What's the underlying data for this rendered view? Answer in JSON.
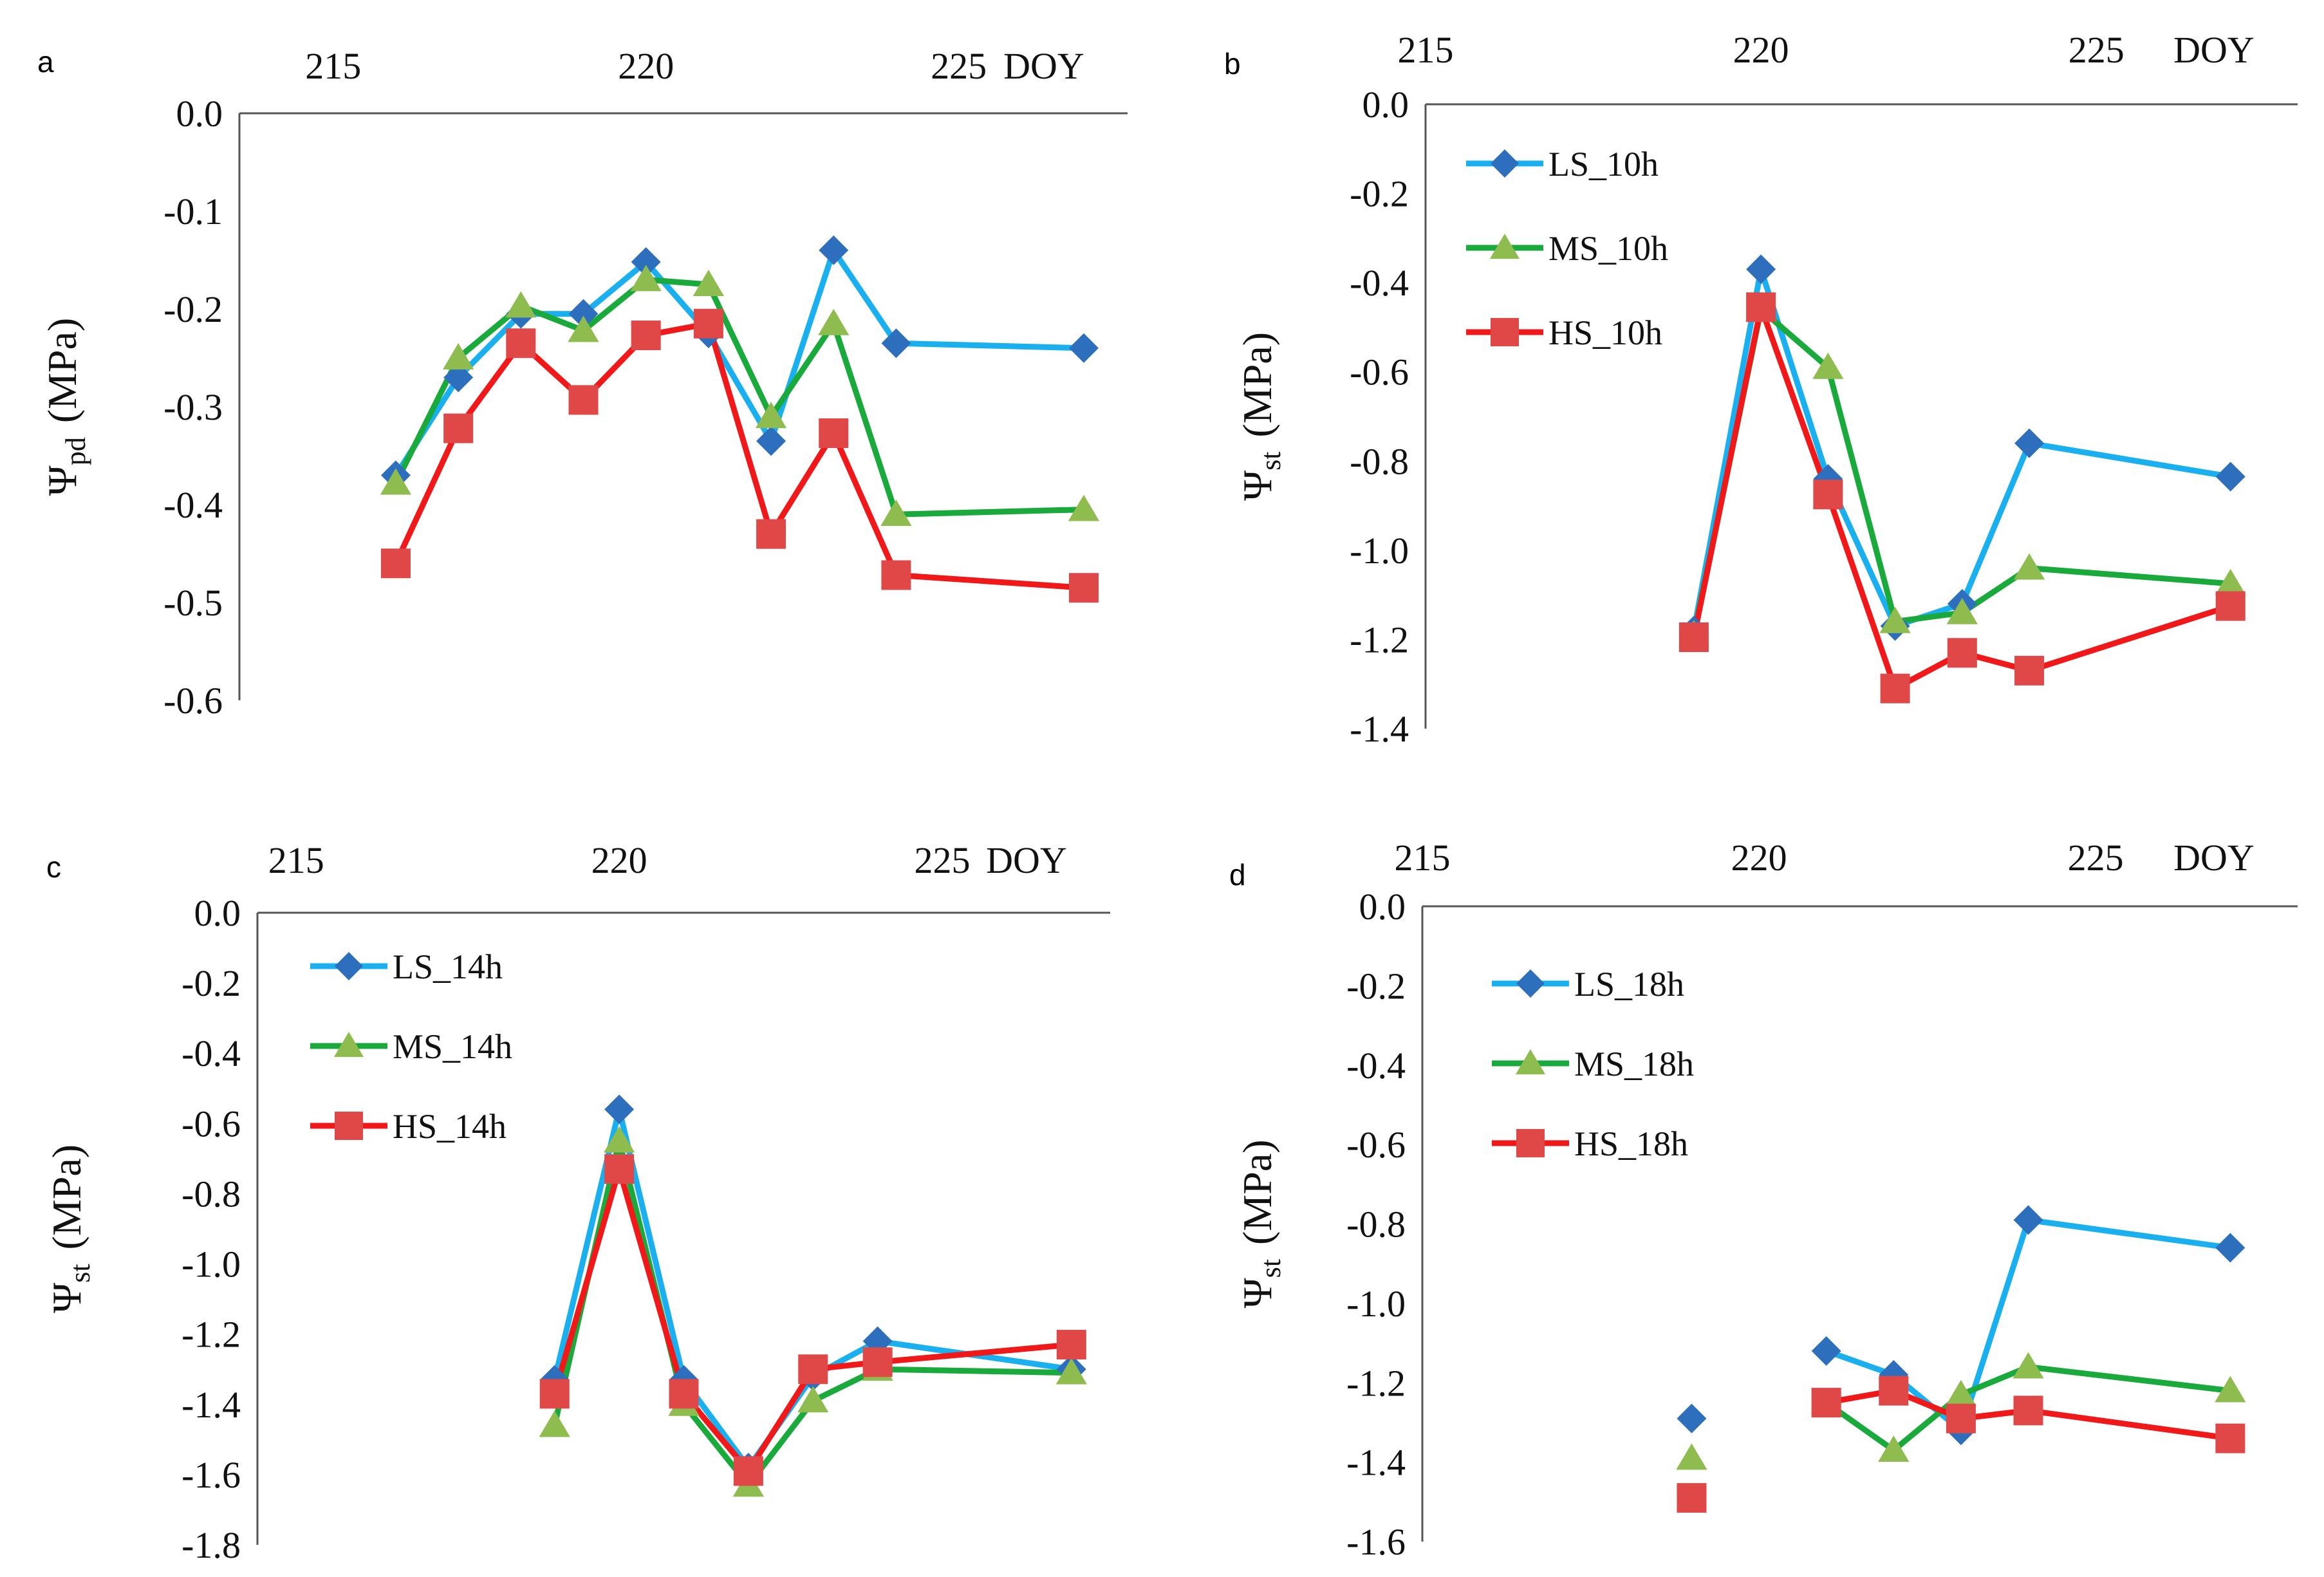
{
  "figure": {
    "colors": {
      "LS": "#1ab0f0",
      "MS": "#1aaa3c",
      "HS": "#f01818",
      "LS_marker": "#2e6fbd",
      "MS_marker": "#8fbc4f",
      "HS_marker": "#e04848"
    }
  },
  "chart_data": [
    {
      "panel": "a",
      "type": "line",
      "x_axis_label": "DOY",
      "x_ticks": [
        "215",
        "220",
        "225"
      ],
      "y_label_main": "Ψ",
      "y_label_sub": "pd",
      "y_label_unit": "(MPa)",
      "y_ticks": [
        "0.0",
        "-0.1",
        "-0.2",
        "-0.3",
        "-0.4",
        "-0.5",
        "-0.6"
      ],
      "xlim": [
        213.5,
        227.7
      ],
      "ylim": [
        -0.6,
        0.0
      ],
      "legend": [],
      "series": [
        {
          "name": "LS",
          "points": [
            [
              216,
              -0.37
            ],
            [
              217,
              -0.27
            ],
            [
              218,
              -0.205
            ],
            [
              219,
              -0.205
            ],
            [
              220,
              -0.152
            ],
            [
              221,
              -0.225
            ],
            [
              222,
              -0.335
            ],
            [
              223,
              -0.14
            ],
            [
              224,
              -0.235
            ],
            [
              227,
              -0.24
            ]
          ]
        },
        {
          "name": "MS",
          "points": [
            [
              216,
              -0.378
            ],
            [
              217,
              -0.25
            ],
            [
              218,
              -0.197
            ],
            [
              219,
              -0.222
            ],
            [
              220,
              -0.17
            ],
            [
              221,
              -0.175
            ],
            [
              222,
              -0.31
            ],
            [
              223,
              -0.215
            ],
            [
              224,
              -0.41
            ],
            [
              227,
              -0.405
            ]
          ]
        },
        {
          "name": "HS",
          "points": [
            [
              216,
              -0.46
            ],
            [
              217,
              -0.322
            ],
            [
              218,
              -0.235
            ],
            [
              219,
              -0.293
            ],
            [
              220,
              -0.227
            ],
            [
              221,
              -0.215
            ],
            [
              222,
              -0.43
            ],
            [
              223,
              -0.327
            ],
            [
              224,
              -0.472
            ],
            [
              227,
              -0.485
            ]
          ]
        }
      ]
    },
    {
      "panel": "b",
      "type": "line",
      "x_axis_label": "DOY",
      "x_ticks": [
        "215",
        "220",
        "225"
      ],
      "y_label_main": "Ψ",
      "y_label_sub": "st",
      "y_label_unit": "(MPa)",
      "y_ticks": [
        "0.0",
        "-0.2",
        "-0.4",
        "-0.6",
        "-0.8",
        "-1.0",
        "-1.2",
        "-1.4"
      ],
      "xlim": [
        215,
        228
      ],
      "ylim": [
        -1.4,
        0.0
      ],
      "legend": [
        "LS_10h",
        "MS_10h",
        "HS_10h"
      ],
      "series": [
        {
          "name": "LS",
          "points": [
            [
              219,
              -1.18
            ],
            [
              220,
              -0.37
            ],
            [
              221,
              -0.84
            ],
            [
              222,
              -1.17
            ],
            [
              223,
              -1.12
            ],
            [
              224,
              -0.76
            ],
            [
              227,
              -0.835
            ]
          ]
        },
        {
          "name": "MS",
          "points": [
            [
              219,
              -1.19
            ],
            [
              220,
              -0.46
            ],
            [
              221,
              -0.59
            ],
            [
              222,
              -1.16
            ],
            [
              223,
              -1.14
            ],
            [
              224,
              -1.04
            ],
            [
              227,
              -1.075
            ]
          ]
        },
        {
          "name": "HS",
          "points": [
            [
              219,
              -1.195
            ],
            [
              220,
              -0.455
            ],
            [
              221,
              -0.875
            ],
            [
              222,
              -1.31
            ],
            [
              223,
              -1.23
            ],
            [
              224,
              -1.27
            ],
            [
              227,
              -1.125
            ]
          ]
        }
      ]
    },
    {
      "panel": "c",
      "type": "line",
      "x_axis_label": "DOY",
      "x_ticks": [
        "215",
        "220",
        "225"
      ],
      "y_label_main": "Ψ",
      "y_label_sub": "st",
      "y_label_unit": "(MPa)",
      "y_ticks": [
        "0.0",
        "-0.2",
        "-0.4",
        "-0.6",
        "-0.8",
        "-1.0",
        "-1.2",
        "-1.4",
        "-1.6",
        "-1.8"
      ],
      "xlim": [
        214.4,
        227.6
      ],
      "ylim": [
        -1.8,
        0.0
      ],
      "legend": [
        "LS_14h",
        "MS_14h",
        "HS_14h"
      ],
      "series": [
        {
          "name": "LS",
          "points": [
            [
              219,
              -1.33
            ],
            [
              220,
              -0.56
            ],
            [
              221,
              -1.33
            ],
            [
              222,
              -1.58
            ],
            [
              223,
              -1.32
            ],
            [
              224,
              -1.22
            ],
            [
              227,
              -1.3
            ]
          ]
        },
        {
          "name": "MS",
          "points": [
            [
              219,
              -1.46
            ],
            [
              220,
              -0.65
            ],
            [
              221,
              -1.4
            ],
            [
              222,
              -1.63
            ],
            [
              223,
              -1.39
            ],
            [
              224,
              -1.3
            ],
            [
              227,
              -1.31
            ]
          ]
        },
        {
          "name": "HS",
          "points": [
            [
              219,
              -1.37
            ],
            [
              220,
              -0.73
            ],
            [
              221,
              -1.37
            ],
            [
              222,
              -1.59
            ],
            [
              223,
              -1.3
            ],
            [
              224,
              -1.28
            ],
            [
              227,
              -1.23
            ]
          ]
        }
      ]
    },
    {
      "panel": "d",
      "type": "line",
      "x_axis_label": "DOY",
      "x_ticks": [
        "215",
        "220",
        "225"
      ],
      "y_label_main": "Ψ",
      "y_label_sub": "st",
      "y_label_unit": "(MPa)",
      "y_ticks": [
        "0.0",
        "-0.2",
        "-0.4",
        "-0.6",
        "-0.8",
        "-1.0",
        "-1.2",
        "-1.4",
        "-1.6"
      ],
      "xlim": [
        215,
        228
      ],
      "ylim": [
        -1.6,
        0.0
      ],
      "legend": [
        "LS_18h",
        "MS_18h",
        "HS_18h"
      ],
      "series": [
        {
          "name": "LS",
          "points": [
            [
              219,
              -1.29,
              "isolated"
            ],
            [
              221,
              -1.12
            ],
            [
              222,
              -1.18
            ],
            [
              223,
              -1.32
            ],
            [
              224,
              -0.79
            ],
            [
              227,
              -0.86
            ]
          ]
        },
        {
          "name": "MS",
          "points": [
            [
              219,
              -1.39,
              "isolated"
            ],
            [
              221,
              -1.25
            ],
            [
              222,
              -1.37
            ],
            [
              223,
              -1.23
            ],
            [
              224,
              -1.16
            ],
            [
              227,
              -1.22
            ]
          ]
        },
        {
          "name": "HS",
          "points": [
            [
              219,
              -1.49,
              "isolated"
            ],
            [
              221,
              -1.25
            ],
            [
              222,
              -1.22
            ],
            [
              223,
              -1.29
            ],
            [
              224,
              -1.27
            ],
            [
              227,
              -1.34
            ]
          ]
        }
      ]
    }
  ]
}
